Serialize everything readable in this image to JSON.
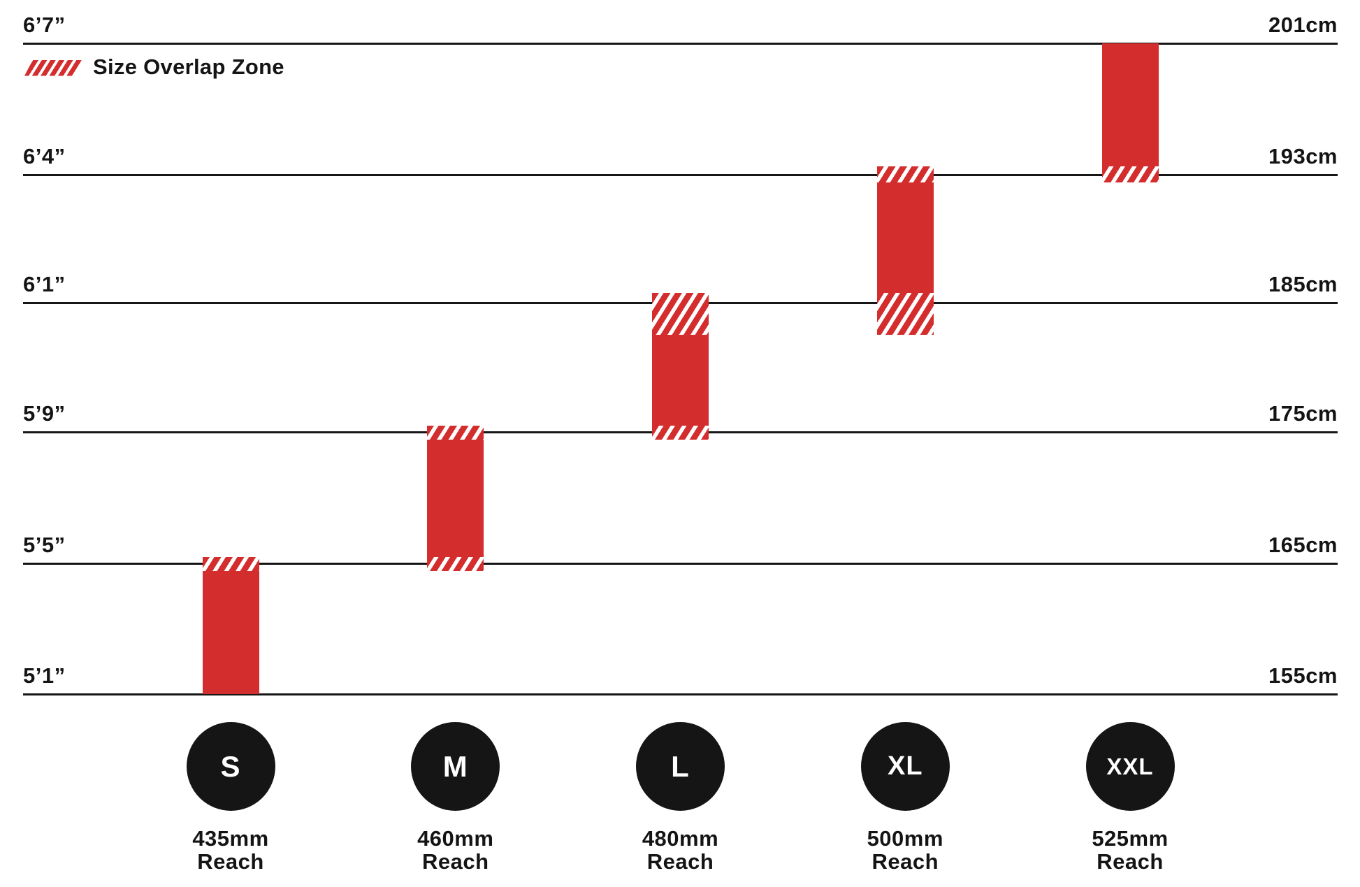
{
  "colors": {
    "bar_red": "#d32e2d",
    "ink": "#141414",
    "circle_black": "#151515",
    "background": "#ffffff"
  },
  "chart_data": {
    "type": "bar",
    "subtype": "vertical-range-bars",
    "title": "",
    "categories": [
      "S",
      "M",
      "L",
      "XL",
      "XXL"
    ],
    "y_axis": {
      "left_tick_labels": [
        "6’7”",
        "6’4”",
        "6’1”",
        "5’9”",
        "5’5”",
        "5’1”"
      ],
      "right_tick_labels": [
        "201cm",
        "193cm",
        "185cm",
        "175cm",
        "165cm",
        "155cm"
      ],
      "tick_values_cm": [
        201,
        193,
        185,
        175,
        165,
        155
      ],
      "gridlines": true,
      "gridline_note": "six horizontal rules, evenly spaced, spanning full chart width"
    },
    "legend": {
      "label": "Size Overlap Zone",
      "style": "red-diagonal-hatch",
      "position": "top-left"
    },
    "series": [
      {
        "size": "S",
        "reach": "435mm",
        "height_range_cm": [
          155.0,
          165.5
        ],
        "overlap_zones_cm": [
          [
            164.4,
            165.5
          ]
        ]
      },
      {
        "size": "M",
        "reach": "460mm",
        "height_range_cm": [
          164.4,
          175.5
        ],
        "overlap_zones_cm": [
          [
            164.4,
            165.5
          ],
          [
            174.4,
            175.5
          ]
        ]
      },
      {
        "size": "L",
        "reach": "480mm",
        "height_range_cm": [
          174.4,
          185.6
        ],
        "overlap_zones_cm": [
          [
            174.4,
            175.5
          ],
          [
            182.5,
            185.6
          ]
        ]
      },
      {
        "size": "XL",
        "reach": "500mm",
        "height_range_cm": [
          182.5,
          193.5
        ],
        "overlap_zones_cm": [
          [
            182.5,
            185.6
          ],
          [
            192.5,
            193.5
          ]
        ]
      },
      {
        "size": "XXL",
        "reach": "525mm",
        "height_range_cm": [
          192.5,
          201.0
        ],
        "overlap_zones_cm": [
          [
            192.5,
            193.5
          ]
        ]
      }
    ],
    "reach_caption": "Reach"
  }
}
